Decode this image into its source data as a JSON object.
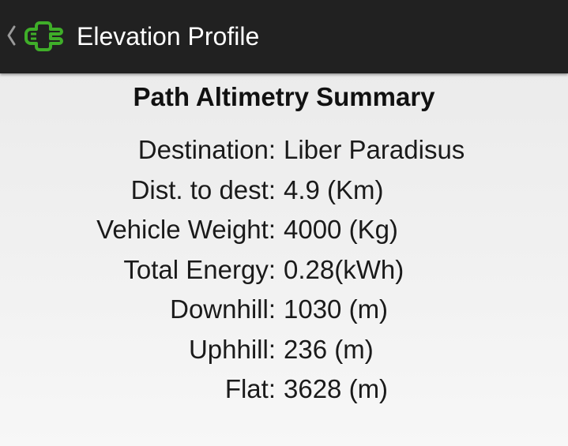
{
  "action_bar": {
    "title": "Elevation Profile",
    "up_icon": "chevron-left-icon",
    "app_icon": "plug-icon",
    "accent_color": "#3fae29"
  },
  "summary": {
    "title": "Path Altimetry Summary",
    "rows": [
      {
        "label": "Destination:",
        "value": "Liber Paradisus"
      },
      {
        "label": "Dist. to dest:",
        "value": "4.9 (Km)"
      },
      {
        "label": "Vehicle Weight:",
        "value": "4000 (Kg)"
      },
      {
        "label": "Total Energy:",
        "value": "0.28(kWh)"
      },
      {
        "label": "Downhill:",
        "value": "1030 (m)"
      },
      {
        "label": "Uphhill:",
        "value": "236 (m)"
      },
      {
        "label": "Flat:",
        "value": "3628 (m)"
      }
    ]
  }
}
